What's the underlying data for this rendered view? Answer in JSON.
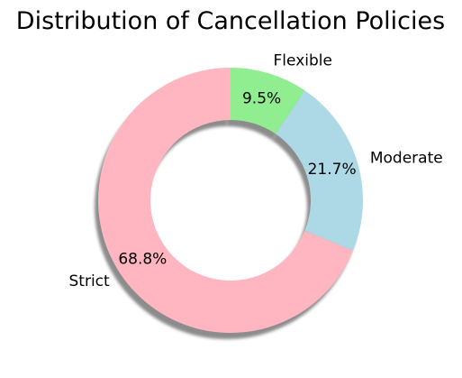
{
  "chart_data": {
    "type": "pie",
    "variant": "donut",
    "title": "Distribution of Cancellation Policies",
    "shadow": true,
    "start_angle_deg": 90,
    "direction": "clockwise",
    "slices": [
      {
        "label": "Flexible",
        "value": 9.5,
        "pct_text": "9.5%",
        "color": "#90ee90"
      },
      {
        "label": "Moderate",
        "value": 21.7,
        "pct_text": "21.7%",
        "color": "#add8e6"
      },
      {
        "label": "Strict",
        "value": 68.8,
        "pct_text": "68.8%",
        "color": "#ffb6c1"
      }
    ]
  }
}
